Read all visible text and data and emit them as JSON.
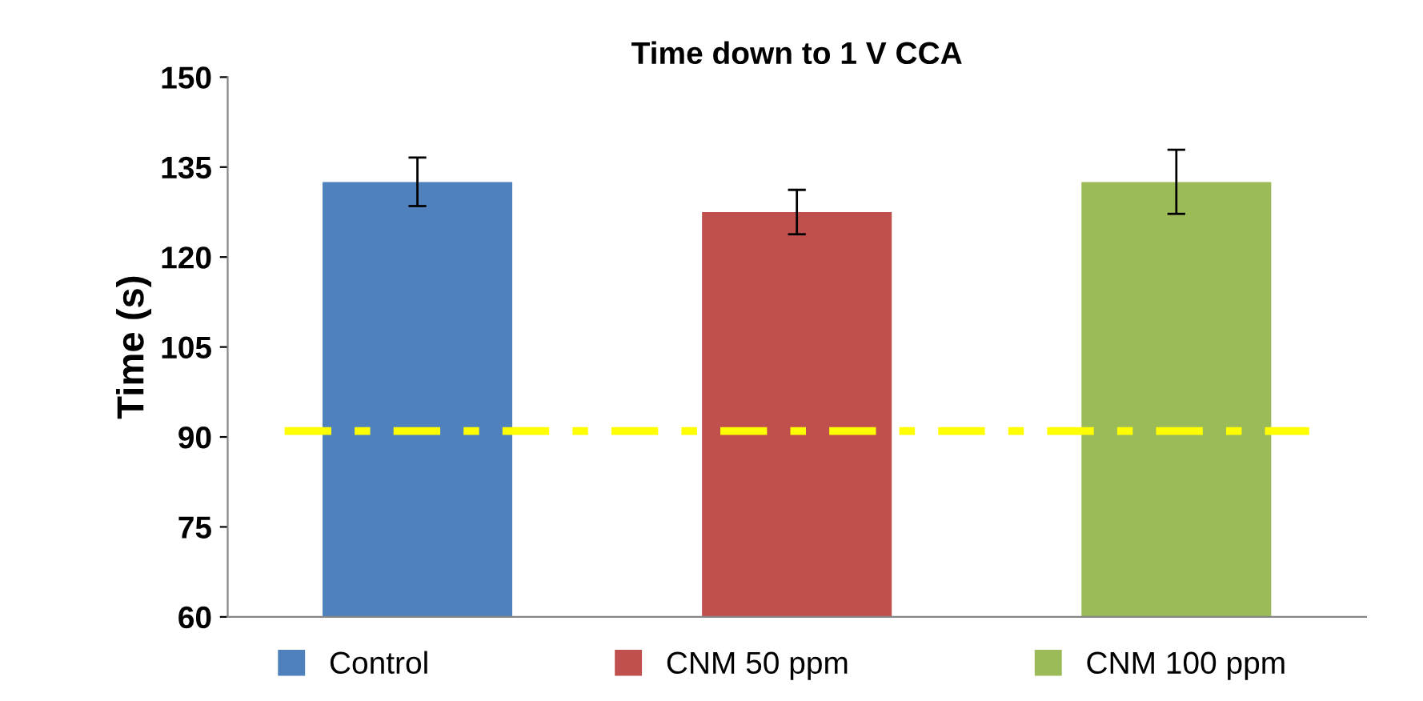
{
  "chart_data": {
    "type": "bar",
    "title": "Time down to 1 V CCA",
    "ylabel": "Time (s)",
    "categories": [
      null,
      null,
      null
    ],
    "series": [
      {
        "name": "Control",
        "color": "#4f81bd",
        "values": [
          132.5,
          null,
          null
        ],
        "errors": [
          [
            128.5,
            136.6
          ],
          null,
          null
        ]
      },
      {
        "name": "CNM 50 ppm",
        "color": "#c0504d",
        "values": [
          null,
          127.5,
          null
        ],
        "errors": [
          null,
          [
            123.8,
            131.2
          ],
          null
        ]
      },
      {
        "name": "CNM 100 ppm",
        "color": "#9bbb59",
        "values": [
          null,
          null,
          132.5
        ],
        "errors": [
          null,
          null,
          [
            127.2,
            137.9
          ]
        ]
      }
    ],
    "ylim": [
      60,
      150
    ],
    "yticks": [
      60,
      75,
      90,
      105,
      120,
      135,
      150
    ],
    "grid": false,
    "legend": "bottom",
    "ref_lines": [
      {
        "axis": "y",
        "value": 91,
        "color": "#ffff00",
        "line_style": "dashdot"
      }
    ]
  }
}
